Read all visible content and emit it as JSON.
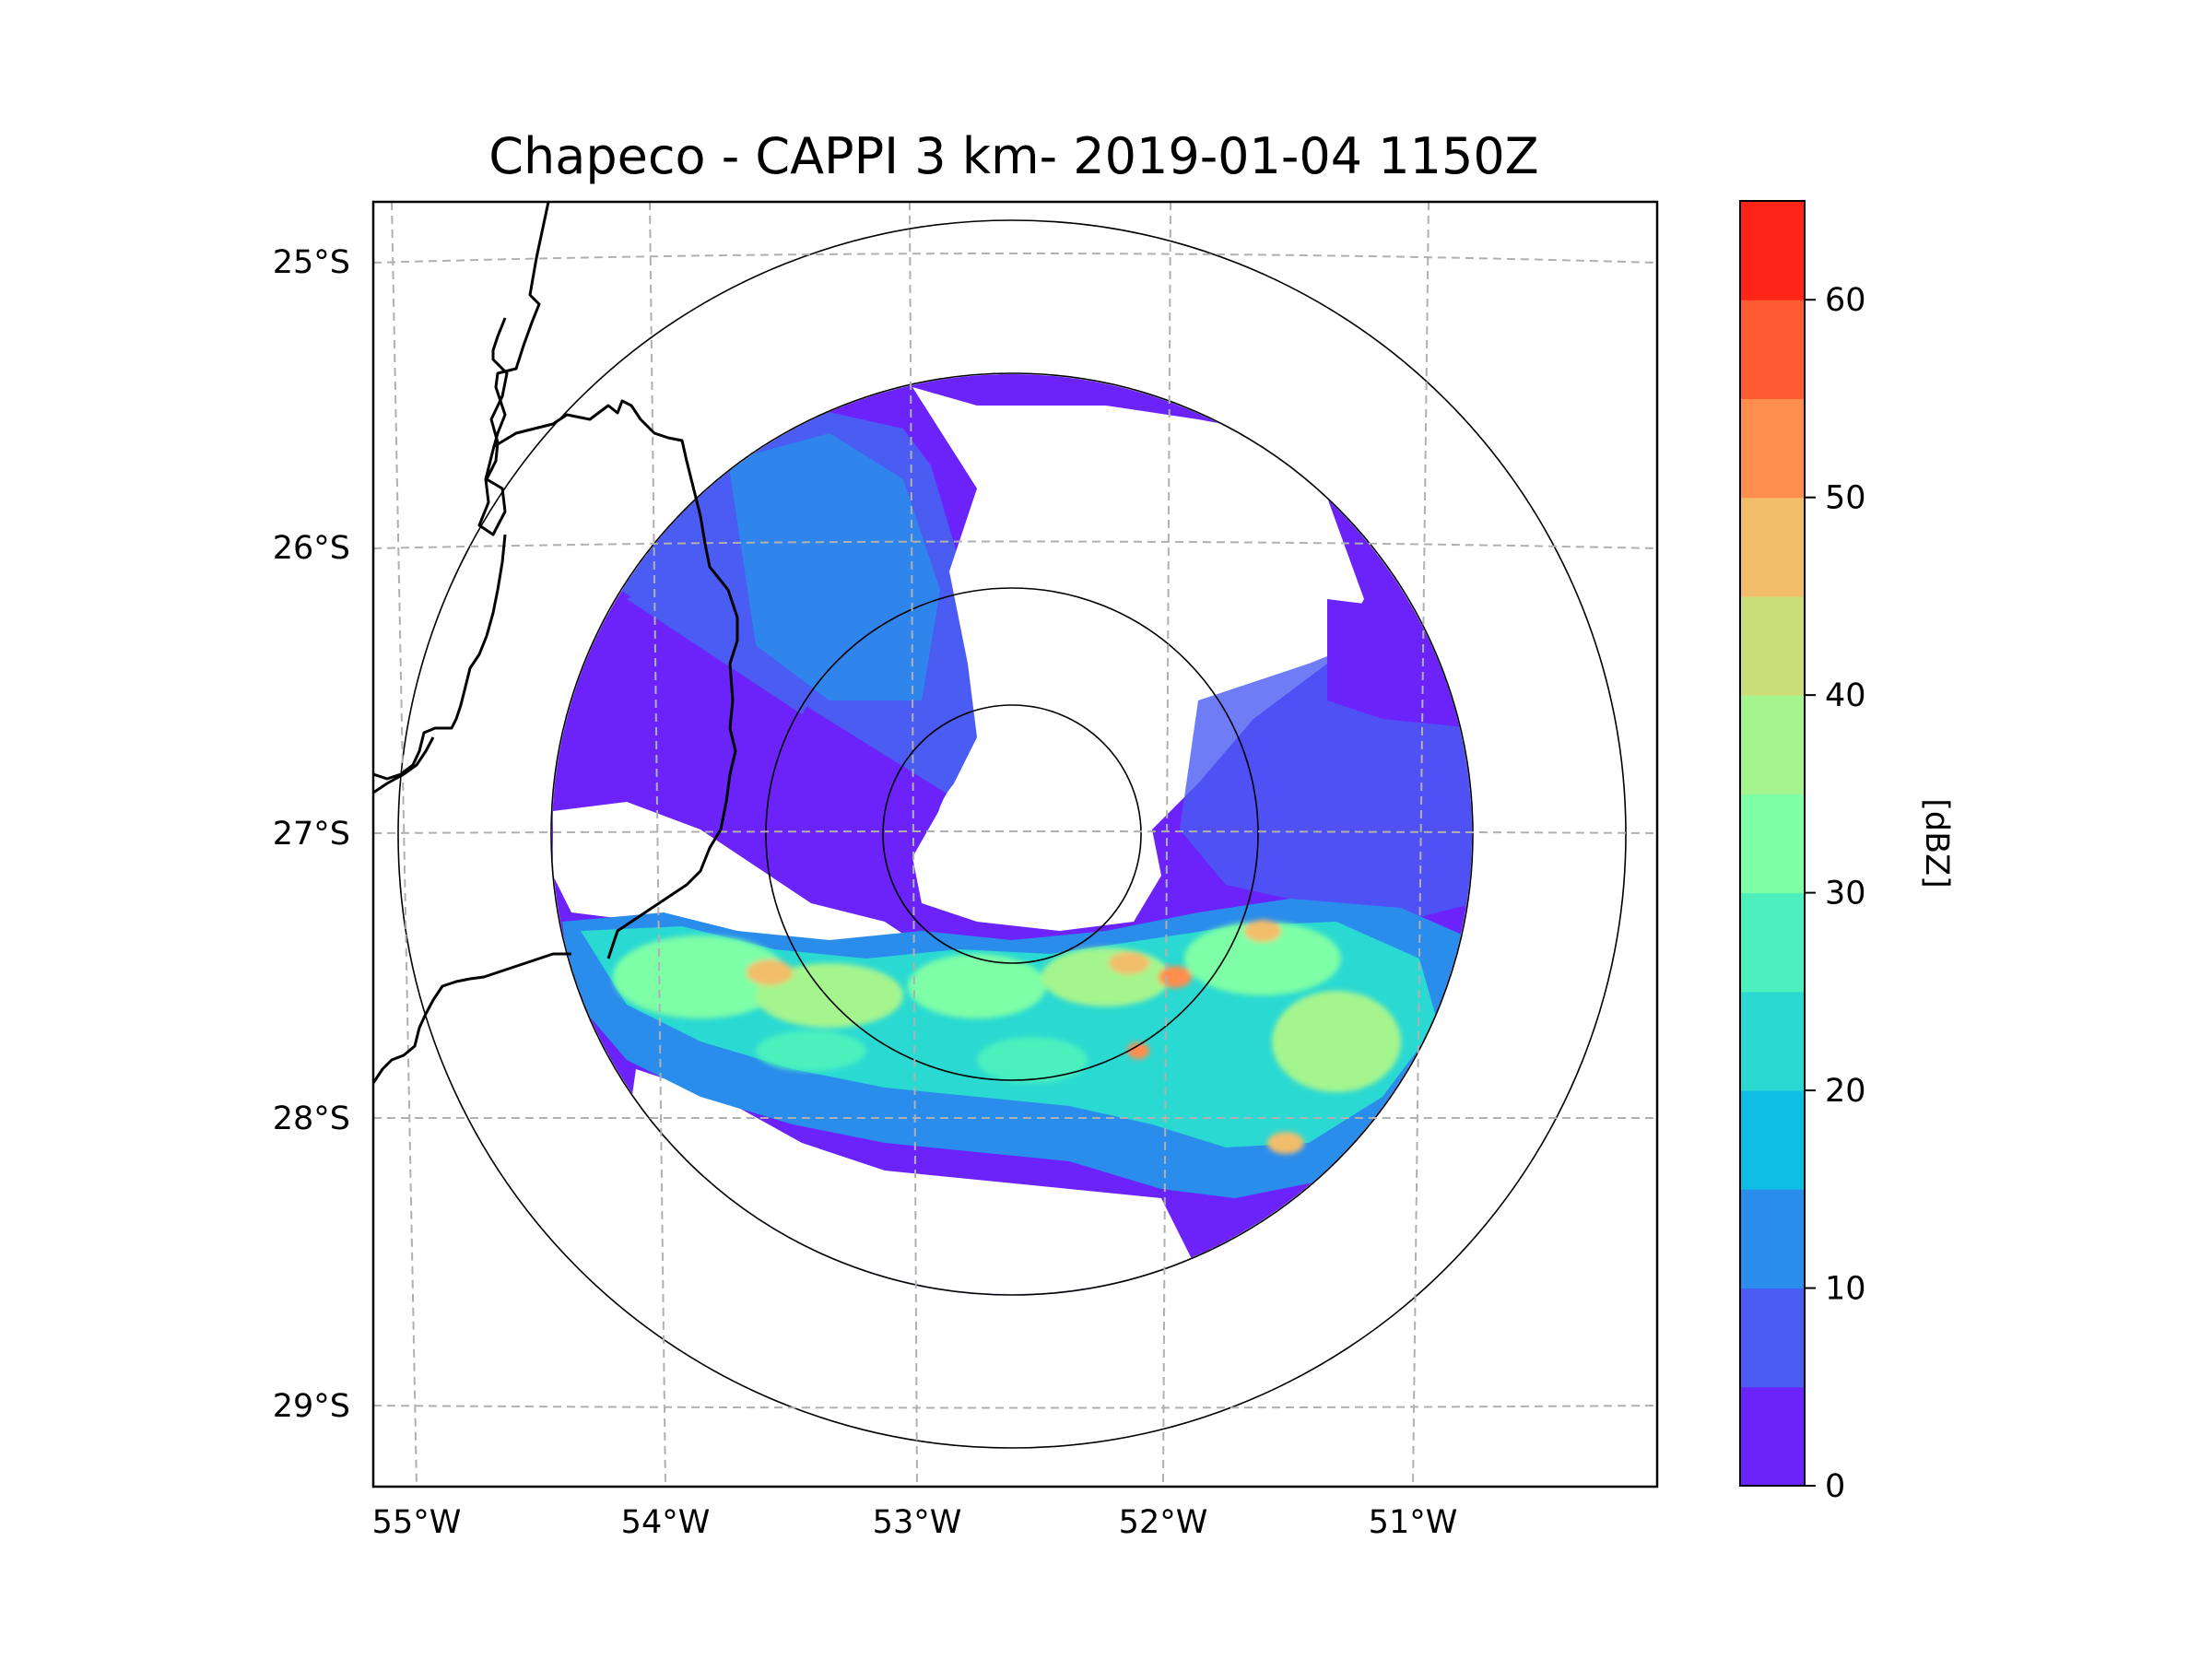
{
  "title": "Chapeco - CAPPI 3 km- 2019-01-04 1150Z",
  "map": {
    "lat_ticks": [
      "25°S",
      "26°S",
      "27°S",
      "28°S",
      "29°S"
    ],
    "lon_ticks": [
      "55°W",
      "54°W",
      "53°W",
      "52°W",
      "51°W"
    ],
    "radar_center": {
      "lon": -52.6,
      "lat": -27.0
    },
    "range_rings": 4
  },
  "colorbar": {
    "label": "[dBZ]",
    "tick_labels": [
      "0",
      "10",
      "20",
      "30",
      "40",
      "50",
      "60"
    ],
    "levels": [
      0,
      5,
      10,
      15,
      20,
      25,
      30,
      35,
      40,
      45,
      50,
      55,
      60,
      65
    ],
    "colors": [
      "#6b23fa",
      "#4a5cf2",
      "#2a8ceb",
      "#0fbce3",
      "#2ad9d2",
      "#4cf0bd",
      "#7efea6",
      "#a5f58e",
      "#cadd78",
      "#f2bd6a",
      "#ff8e4e",
      "#ff5b33",
      "#ff2418"
    ]
  }
}
